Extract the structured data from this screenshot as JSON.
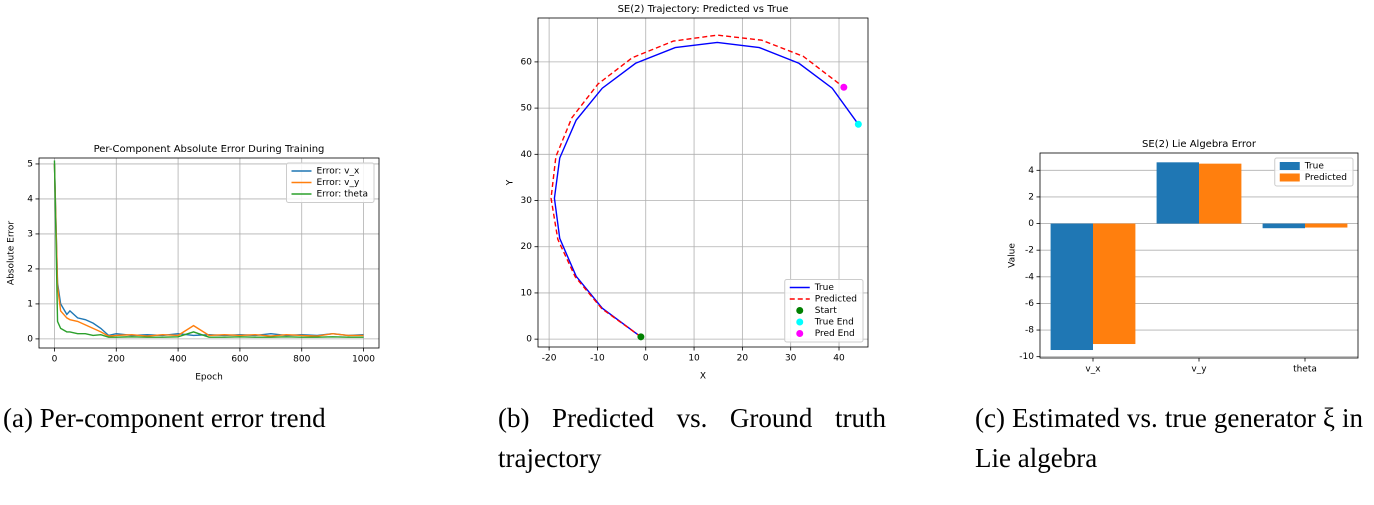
{
  "chart_data": [
    {
      "type": "line",
      "title": "Per-Component Absolute Error During Training",
      "xlabel": "Epoch",
      "ylabel": "Absolute Error",
      "x": [
        0,
        10,
        20,
        30,
        40,
        50,
        75,
        100,
        125,
        150,
        175,
        200,
        250,
        300,
        350,
        400,
        450,
        500,
        550,
        600,
        650,
        700,
        750,
        800,
        850,
        900,
        950,
        1000
      ],
      "series": [
        {
          "name": "Error: v_x",
          "color": "#1f77b4",
          "values": [
            5.0,
            1.6,
            1.0,
            0.85,
            0.7,
            0.8,
            0.6,
            0.55,
            0.45,
            0.3,
            0.1,
            0.15,
            0.1,
            0.12,
            0.1,
            0.15,
            0.1,
            0.12,
            0.1,
            0.12,
            0.1,
            0.15,
            0.1,
            0.12,
            0.1,
            0.15,
            0.1,
            0.12
          ]
        },
        {
          "name": "Error: v_y",
          "color": "#ff7f0e",
          "values": [
            5.0,
            1.5,
            0.8,
            0.7,
            0.6,
            0.55,
            0.5,
            0.4,
            0.3,
            0.2,
            0.08,
            0.1,
            0.12,
            0.08,
            0.12,
            0.1,
            0.38,
            0.1,
            0.12,
            0.1,
            0.12,
            0.08,
            0.12,
            0.1,
            0.08,
            0.15,
            0.1,
            0.1
          ]
        },
        {
          "name": "Error: theta",
          "color": "#2ca02c",
          "values": [
            5.1,
            0.5,
            0.3,
            0.25,
            0.2,
            0.2,
            0.15,
            0.15,
            0.1,
            0.12,
            0.05,
            0.05,
            0.06,
            0.05,
            0.05,
            0.06,
            0.2,
            0.05,
            0.05,
            0.06,
            0.05,
            0.05,
            0.06,
            0.05,
            0.05,
            0.06,
            0.05,
            0.05
          ]
        }
      ],
      "xlim": [
        -50,
        1050
      ],
      "xticks": [
        0,
        200,
        400,
        600,
        800,
        1000
      ],
      "ylim": [
        -0.26,
        5.17
      ],
      "yticks": [
        0,
        1,
        2,
        3,
        4,
        5
      ],
      "grid": true,
      "legend": "upper right",
      "caption": "(a) Per-component error trend"
    },
    {
      "type": "line",
      "title": "SE(2) Trajectory: Predicted vs True",
      "xlabel": "X",
      "ylabel": "Y",
      "series": [
        {
          "name": "True",
          "color": "blue",
          "x": [
            -1,
            -9.0,
            -14.4,
            -17.8,
            -18.9,
            -17.8,
            -14.4,
            -9.0,
            -2.1,
            6.1,
            14.8,
            23.5,
            31.7,
            38.6,
            44.0
          ],
          "values": [
            0.5,
            6.7,
            13.6,
            21.8,
            30.5,
            39.2,
            47.4,
            54.3,
            59.7,
            63.1,
            64.2,
            63.1,
            59.7,
            54.3,
            46.5
          ]
        },
        {
          "name": "Predicted",
          "color": "red",
          "linestyle": "dashed",
          "x": [
            -1,
            -9.1,
            -14.6,
            -18.2,
            -19.6,
            -18.6,
            -15.3,
            -9.9,
            -2.8,
            5.7,
            14.8,
            24.0,
            32.6,
            41.0
          ],
          "values": [
            0.5,
            6.6,
            13.5,
            21.6,
            30.5,
            39.5,
            47.9,
            55.2,
            60.9,
            64.5,
            65.8,
            64.7,
            61.2,
            54.5
          ]
        },
        {
          "name": "Start",
          "color": "green",
          "marker": "o",
          "x": [
            -1
          ],
          "values": [
            0.5
          ]
        },
        {
          "name": "True End",
          "color": "cyan",
          "marker": "o",
          "x": [
            44.0
          ],
          "values": [
            46.5
          ]
        },
        {
          "name": "Pred End",
          "color": "magenta",
          "marker": "o",
          "x": [
            41.0
          ],
          "values": [
            54.5
          ]
        }
      ],
      "xlim": [
        -22.3,
        46
      ],
      "xticks": [
        -20,
        -10,
        0,
        10,
        20,
        30,
        40
      ],
      "ylim": [
        -1.7,
        69.5
      ],
      "yticks": [
        0,
        10,
        20,
        30,
        40,
        50,
        60
      ],
      "grid": true,
      "legend": "lower right",
      "caption": "(b) Predicted vs. Ground truth trajectory"
    },
    {
      "type": "bar",
      "title": "SE(2) Lie Algebra Error",
      "ylabel": "Value",
      "categories": [
        "v_x",
        "v_y",
        "theta"
      ],
      "series": [
        {
          "name": "True",
          "color": "#1f77b4",
          "values": [
            -9.5,
            4.6,
            -0.35
          ]
        },
        {
          "name": "Predicted",
          "color": "#ff7f0e",
          "values": [
            -9.05,
            4.5,
            -0.3
          ]
        }
      ],
      "ylim": [
        -10.1,
        5.3
      ],
      "yticks": [
        -10,
        -8,
        -6,
        -4,
        -2,
        0,
        2,
        4
      ],
      "grid": true,
      "legend": "upper right",
      "caption": "(c) Estimated vs. true generator ξ in Lie algebra"
    }
  ]
}
